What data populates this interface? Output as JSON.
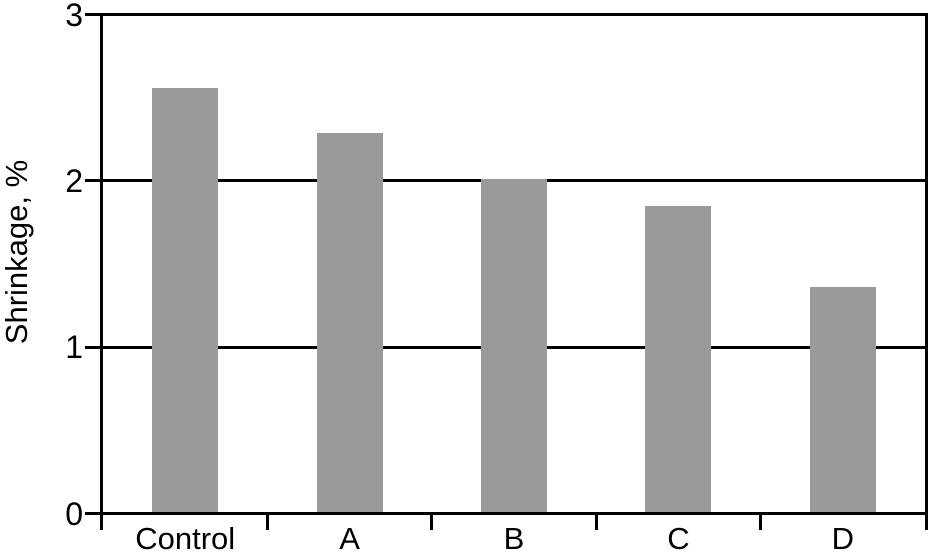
{
  "figure": {
    "background": "#ffffff"
  },
  "chart_data": {
    "type": "bar",
    "categories": [
      "Control",
      "A",
      "B",
      "C",
      "D"
    ],
    "values": [
      2.55,
      2.28,
      2.0,
      1.84,
      1.35
    ],
    "title": "",
    "xlabel": "",
    "ylabel": "Shrinkage, %",
    "ylim": [
      0,
      3
    ],
    "yticks": [
      0,
      1,
      2,
      3
    ],
    "ytick_labels": [
      "0",
      "1",
      "2",
      "3"
    ],
    "grid": true,
    "legend_position": "none",
    "bar_color": "#9a9a9a",
    "axis_color": "#000000",
    "text_color": "#000000"
  }
}
